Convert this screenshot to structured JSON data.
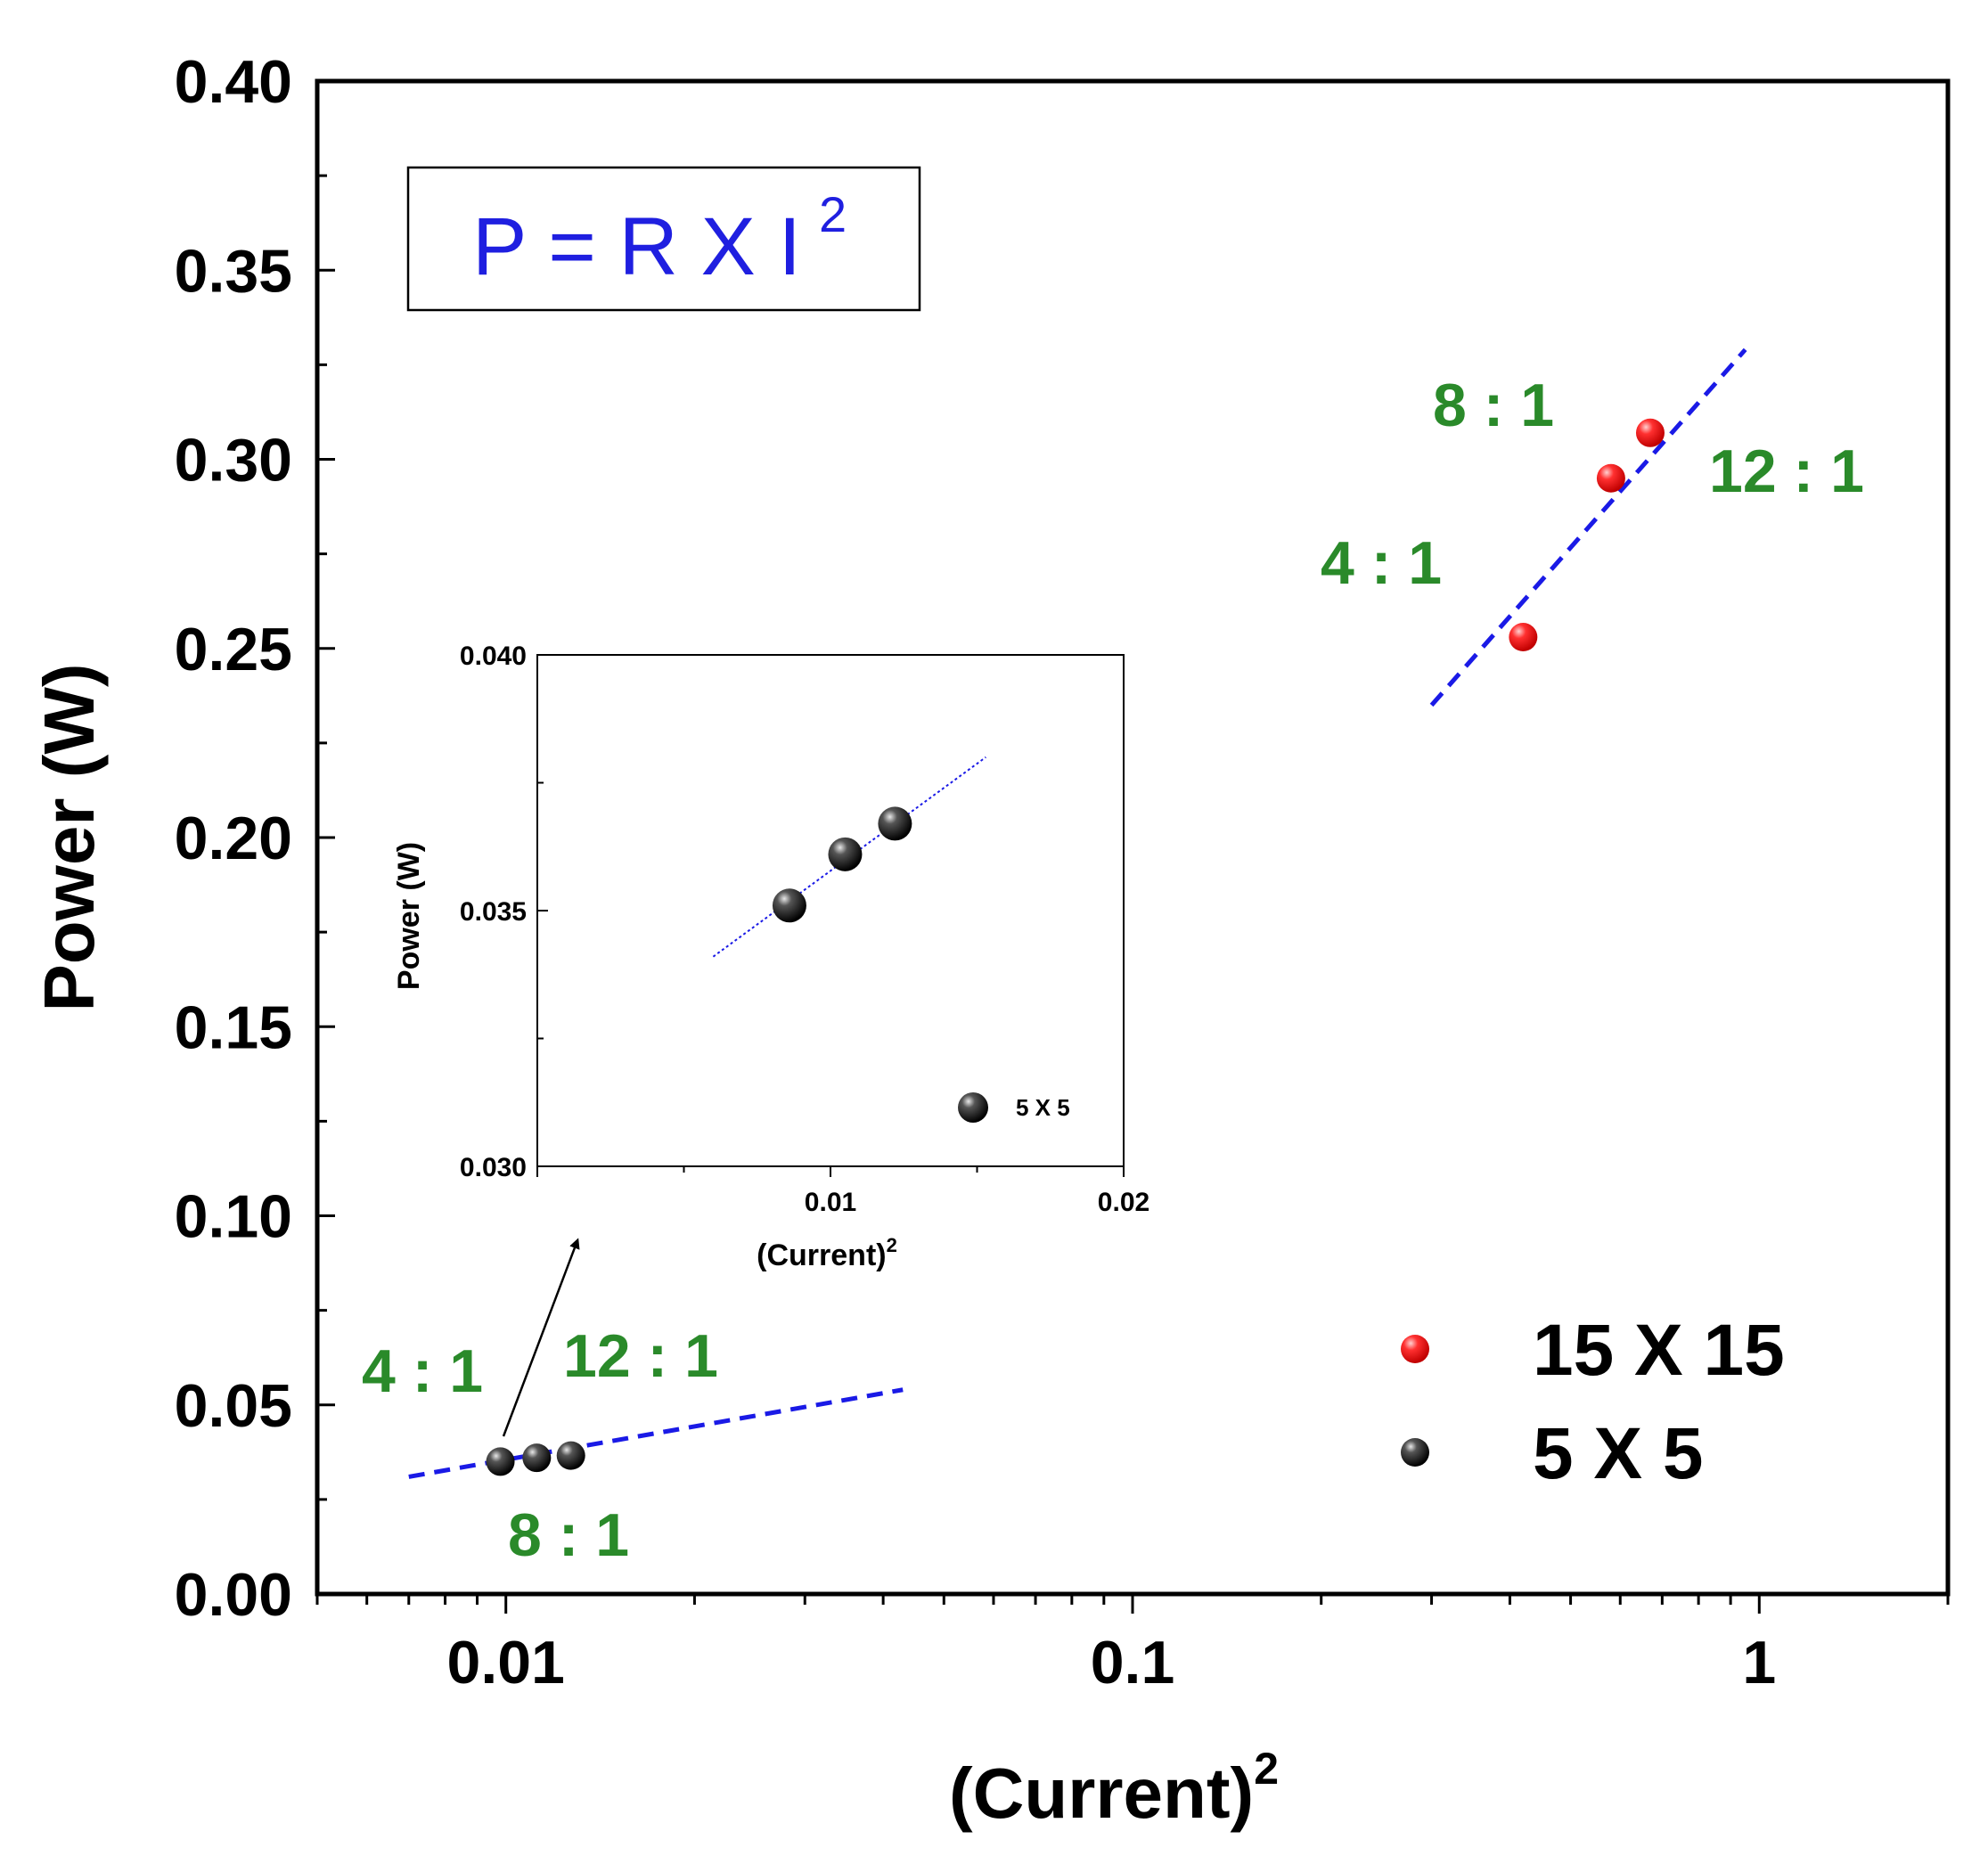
{
  "chart_data": [
    {
      "type": "scatter",
      "x_scale": "log",
      "xlabel": "(Current)",
      "xlabel_superscript": "2",
      "ylabel": "Power (W)",
      "xlim": [
        0.005,
        2
      ],
      "ylim": [
        0,
        0.4
      ],
      "x_tick_labels": [
        "0.01",
        "0.1",
        "1"
      ],
      "x_tick_values": [
        0.01,
        0.1,
        1
      ],
      "y_tick_labels": [
        "0.00",
        "0.05",
        "0.10",
        "0.15",
        "0.20",
        "0.25",
        "0.30",
        "0.35",
        "0.40"
      ],
      "y_tick_values": [
        0,
        0.05,
        0.1,
        0.15,
        0.2,
        0.25,
        0.3,
        0.35,
        0.4
      ],
      "formula": {
        "text": "P = R X I",
        "superscript": "2"
      },
      "series": [
        {
          "name": "15 X 15",
          "color": "#e41a1c",
          "x": [
            0.42,
            0.58,
            0.67
          ],
          "y": [
            0.253,
            0.295,
            0.307
          ],
          "fit_line": {
            "x": [
              0.3,
              0.95
            ],
            "y": [
              0.235,
              0.329
            ]
          }
        },
        {
          "name": "5 X 5",
          "color": "#111111",
          "x": [
            0.0098,
            0.0112,
            0.0127
          ],
          "y": [
            0.035,
            0.036,
            0.0366
          ],
          "fit_line": {
            "x": [
              0.007,
              0.043
            ],
            "y": [
              0.031,
              0.054
            ]
          }
        }
      ],
      "annotations": [
        {
          "text": "8 : 1",
          "near": "15 X 15 middle point",
          "color": "#2a8a2a"
        },
        {
          "text": "12 : 1",
          "near": "15 X 15 upper point",
          "color": "#2a8a2a"
        },
        {
          "text": "4 : 1",
          "near": "15 X 15 lower point",
          "color": "#2a8a2a"
        },
        {
          "text": "4 : 1",
          "near": "5 X 5 left point",
          "color": "#2a8a2a"
        },
        {
          "text": "12 : 1",
          "near": "5 X 5 right point",
          "color": "#2a8a2a"
        },
        {
          "text": "8 : 1",
          "near": "5 X 5 middle point",
          "color": "#2a8a2a"
        }
      ],
      "legend": {
        "position": "bottom-right",
        "entries": [
          "15 X 15",
          "5 X 5"
        ]
      }
    },
    {
      "type": "scatter",
      "role": "inset",
      "xlabel": "(Current)",
      "xlabel_superscript": "2",
      "ylabel": "Power (W)",
      "xlim": [
        0,
        0.02
      ],
      "ylim": [
        0.03,
        0.04
      ],
      "x_tick_labels": [
        "0.01",
        "0.02"
      ],
      "x_tick_values": [
        0.01,
        0.02
      ],
      "y_tick_labels": [
        "0.030",
        "0.035",
        "0.040"
      ],
      "y_tick_values": [
        0.03,
        0.035,
        0.04
      ],
      "series": [
        {
          "name": "5 X 5",
          "color": "#111111",
          "x": [
            0.0086,
            0.0105,
            0.0122
          ],
          "y": [
            0.0351,
            0.0361,
            0.0367
          ],
          "fit_line": {
            "x": [
              0.006,
              0.0153
            ],
            "y": [
              0.0341,
              0.038
            ]
          }
        }
      ],
      "legend": {
        "position": "bottom-right",
        "entries": [
          "5 X 5"
        ]
      }
    }
  ]
}
